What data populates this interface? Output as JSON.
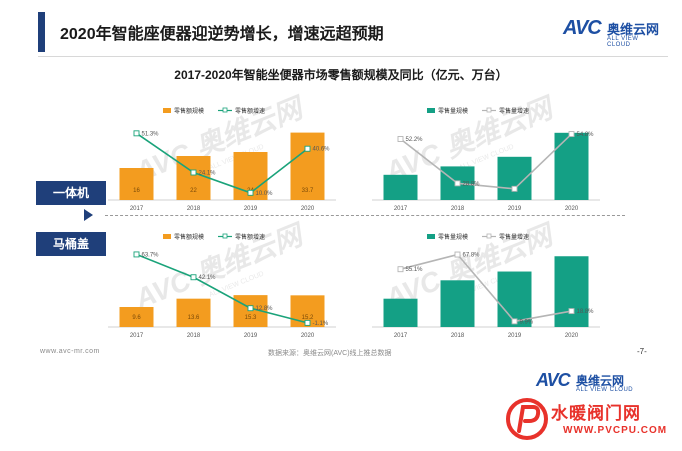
{
  "page": {
    "title": "2020年智能座便器迎逆势增长，增速远超预期",
    "footer_url": "www.avc-mr.com",
    "footer_source": "数据来源：奥维云网(AVC)线上推总数据",
    "page_number": "-7-"
  },
  "brand": {
    "logo_text": "AVC",
    "logo_cn": "奥维云网",
    "logo_en": "ALL VIEW CLOUD",
    "watermark_text": "AVC 奥维云网",
    "watermark_sub": "ALL VIEW CLOUD",
    "site_name": "水暖阀门网",
    "site_url": "WWW.PVCPU.COM",
    "primary_color": "#1f3f7a",
    "accent_color": "#1d4fa3",
    "site_color": "#e8322b"
  },
  "chart_title": "2017-2020年智能坐便器市场零售额规模及同比（亿元、万台）",
  "rows": [
    {
      "label": "一体机"
    },
    {
      "label": "马桶盖"
    }
  ],
  "chart_data": [
    {
      "type": "bar",
      "group": "一体机",
      "categories": [
        "2017",
        "2018",
        "2019",
        "2020"
      ],
      "series": [
        {
          "name": "零售额规模",
          "kind": "bar",
          "color": "#f39c1f",
          "values": [
            16,
            22,
            24,
            33.7
          ],
          "labels": [
            "16",
            "22",
            "24",
            "33.7"
          ]
        },
        {
          "name": "零售额增速",
          "kind": "line",
          "color": "#1aa37a",
          "values": [
            51.3,
            24.1,
            10.0,
            40.6
          ],
          "labels": [
            "51.3%",
            "24.1%",
            "10.0%",
            "40.6%"
          ]
        }
      ]
    },
    {
      "type": "bar",
      "group": "一体机",
      "categories": [
        "2017",
        "2018",
        "2019",
        "2020"
      ],
      "series": [
        {
          "name": "零售量规模",
          "kind": "bar",
          "color": "#14a085",
          "values": [
            21,
            28,
            36,
            56
          ],
          "labels": [
            "",
            "",
            "",
            ""
          ]
        },
        {
          "name": "零售量增速",
          "kind": "line",
          "color": "#b5b5b5",
          "values": [
            52.2,
            28.8,
            25.9,
            54.8
          ],
          "labels": [
            "52.2%",
            "28.8%",
            "",
            "54.8%"
          ]
        }
      ]
    },
    {
      "type": "bar",
      "group": "马桶盖",
      "categories": [
        "2017",
        "2018",
        "2019",
        "2020"
      ],
      "series": [
        {
          "name": "零售额规模",
          "kind": "bar",
          "color": "#f39c1f",
          "values": [
            9.6,
            13.6,
            15.3,
            15.2
          ],
          "labels": [
            "9.6",
            "13.6",
            "15.3",
            "15.2"
          ]
        },
        {
          "name": "零售额增速",
          "kind": "line",
          "color": "#1aa37a",
          "values": [
            63.7,
            42.1,
            12.8,
            -1.1
          ],
          "labels": [
            "63.7%",
            "42.1%",
            "12.8%",
            "-1.1%"
          ]
        }
      ]
    },
    {
      "type": "bar",
      "group": "马桶盖",
      "categories": [
        "2017",
        "2018",
        "2019",
        "2020"
      ],
      "series": [
        {
          "name": "零售量规模",
          "kind": "bar",
          "color": "#14a085",
          "values": [
            100,
            165,
            196,
            250
          ],
          "labels": [
            "",
            "",
            "",
            ""
          ]
        },
        {
          "name": "零售量增速",
          "kind": "line",
          "color": "#b5b5b5",
          "values": [
            55.1,
            67.8,
            9.9,
            18.8
          ],
          "labels": [
            "55.1%",
            "67.8%",
            "9.9%",
            "18.8%"
          ]
        }
      ]
    }
  ]
}
